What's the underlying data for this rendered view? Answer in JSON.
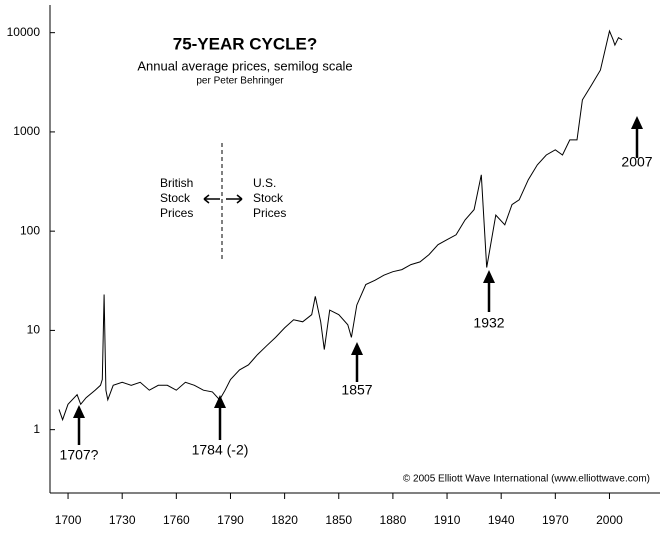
{
  "chart_data": {
    "type": "line",
    "title": "75-YEAR CYCLE?",
    "subtitle": "Annual average prices, semilog scale",
    "credit": "per Peter Behringer",
    "copyright": "© 2005 Elliott Wave International (www.elliottwave.com)",
    "british_label": [
      "British",
      "Stock",
      "Prices"
    ],
    "us_label": [
      "U.S.",
      "Stock",
      "Prices"
    ],
    "annotations": [
      "1707?",
      "1784 (-2)",
      "1857",
      "1932",
      "2007"
    ],
    "log_y": true,
    "color": "#000000",
    "xlim": [
      1690,
      2028
    ],
    "xticks": [
      1700,
      1730,
      1760,
      1790,
      1820,
      1850,
      1880,
      1910,
      1940,
      1970,
      2000
    ],
    "ylim": [
      0.23,
      19000
    ],
    "yticks": [
      1,
      10,
      100,
      1000,
      10000
    ],
    "x": [
      1695,
      1697,
      1700,
      1705,
      1707,
      1710,
      1715,
      1718,
      1719,
      1720,
      1721,
      1722,
      1725,
      1730,
      1735,
      1740,
      1745,
      1750,
      1755,
      1760,
      1765,
      1770,
      1775,
      1780,
      1784,
      1787,
      1790,
      1795,
      1800,
      1805,
      1810,
      1815,
      1820,
      1825,
      1830,
      1835,
      1837,
      1840,
      1842,
      1845,
      1850,
      1855,
      1857,
      1860,
      1865,
      1870,
      1875,
      1880,
      1885,
      1890,
      1895,
      1900,
      1905,
      1910,
      1915,
      1920,
      1925,
      1929,
      1932,
      1937,
      1942,
      1946,
      1950,
      1955,
      1960,
      1965,
      1970,
      1974,
      1978,
      1982,
      1985,
      1990,
      1995,
      2000,
      2002,
      2003,
      2005,
      2007
    ],
    "values": [
      1.6,
      1.26,
      1.8,
      2.25,
      1.8,
      2.1,
      2.5,
      2.8,
      3.2,
      23,
      2.5,
      2,
      2.8,
      3,
      2.8,
      3,
      2.5,
      2.8,
      2.8,
      2.5,
      3,
      2.8,
      2.5,
      2.4,
      2,
      2.5,
      3.2,
      4,
      4.5,
      5.7,
      7,
      8.5,
      10.6,
      12.8,
      12.2,
      14.4,
      22,
      12.2,
      6.4,
      16,
      14.4,
      11.4,
      8.5,
      18,
      29,
      32,
      36,
      39,
      41,
      46,
      49,
      58,
      73,
      82,
      92,
      130,
      165,
      370,
      43,
      145,
      116,
      185,
      207,
      330,
      465,
      585,
      660,
      585,
      830,
      830,
      2100,
      2950,
      4200,
      10400,
      8500,
      7500,
      8900,
      8500
    ]
  }
}
